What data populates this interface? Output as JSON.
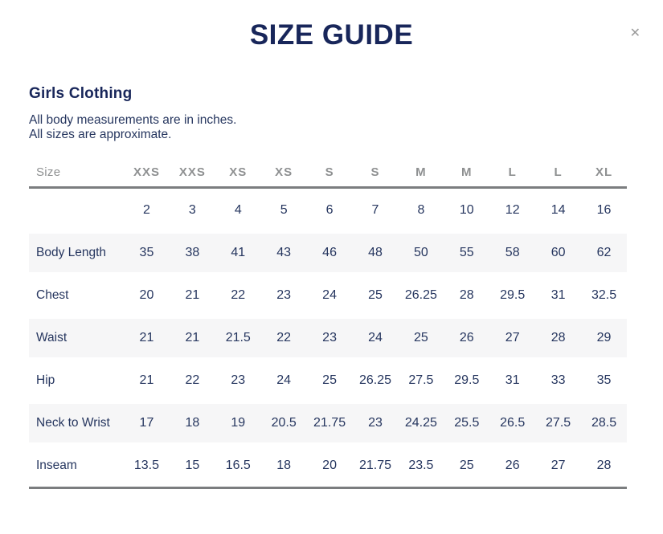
{
  "modal": {
    "title": "SIZE GUIDE",
    "close_glyph": "✕"
  },
  "section": {
    "heading": "Girls Clothing",
    "notes": [
      "All body measurements are in inches.",
      "All sizes are approximate."
    ]
  },
  "table": {
    "corner_label": "Size",
    "size_headers": [
      "XXS",
      "XXS",
      "XS",
      "XS",
      "S",
      "S",
      "M",
      "M",
      "L",
      "L",
      "XL"
    ],
    "rows": [
      {
        "label": "",
        "values": [
          "2",
          "3",
          "4",
          "5",
          "6",
          "7",
          "8",
          "10",
          "12",
          "14",
          "16"
        ]
      },
      {
        "label": "Body Length",
        "values": [
          "35",
          "38",
          "41",
          "43",
          "46",
          "48",
          "50",
          "55",
          "58",
          "60",
          "62"
        ]
      },
      {
        "label": "Chest",
        "values": [
          "20",
          "21",
          "22",
          "23",
          "24",
          "25",
          "26.25",
          "28",
          "29.5",
          "31",
          "32.5"
        ]
      },
      {
        "label": "Waist",
        "values": [
          "21",
          "21",
          "21.5",
          "22",
          "23",
          "24",
          "25",
          "26",
          "27",
          "28",
          "29"
        ]
      },
      {
        "label": "Hip",
        "values": [
          "21",
          "22",
          "23",
          "24",
          "25",
          "26.25",
          "27.5",
          "29.5",
          "31",
          "33",
          "35"
        ]
      },
      {
        "label": "Neck to Wrist",
        "values": [
          "17",
          "18",
          "19",
          "20.5",
          "21.75",
          "23",
          "24.25",
          "25.5",
          "26.5",
          "27.5",
          "28.5"
        ]
      },
      {
        "label": "Inseam",
        "values": [
          "13.5",
          "15",
          "16.5",
          "18",
          "20",
          "21.75",
          "23.5",
          "25",
          "26",
          "27",
          "28"
        ]
      }
    ]
  },
  "colors": {
    "heading_navy": "#18265a",
    "text_navy": "#26365f",
    "header_gray": "#8e9091",
    "rule_gray": "#7b7d7f",
    "row_stripe": "#f6f6f7",
    "close_gray": "#9b9b9b"
  }
}
